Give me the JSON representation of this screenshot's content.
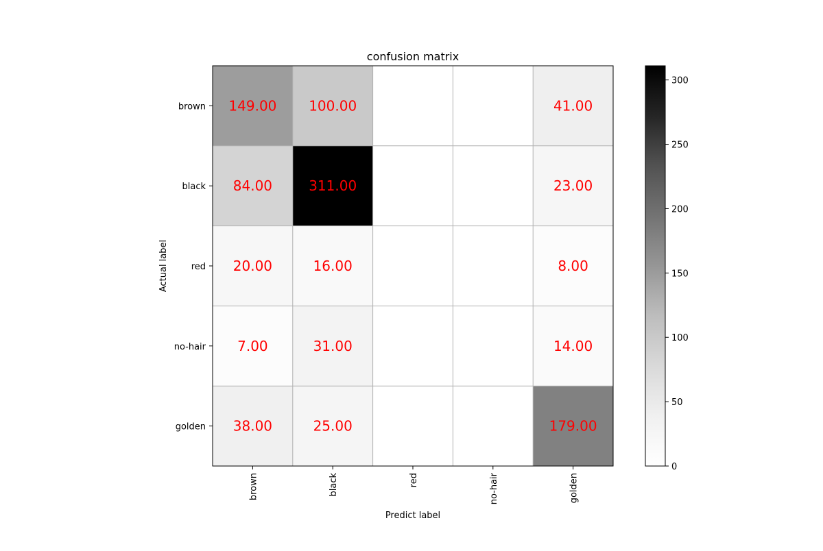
{
  "chart_data": {
    "type": "heatmap",
    "title": "confusion matrix",
    "xlabel": "Predict label",
    "ylabel": "Actual label",
    "x_categories": [
      "brown",
      "black",
      "red",
      "no-hair",
      "golden"
    ],
    "y_categories": [
      "brown",
      "black",
      "red",
      "no-hair",
      "golden"
    ],
    "values": [
      [
        149,
        100,
        0,
        0,
        41
      ],
      [
        84,
        311,
        0,
        0,
        23
      ],
      [
        20,
        16,
        0,
        0,
        8
      ],
      [
        7,
        31,
        0,
        0,
        14
      ],
      [
        38,
        25,
        0,
        0,
        179
      ]
    ],
    "value_format_decimals": 2,
    "zero_cells_labeled": false,
    "colormap": "Greys",
    "color_range": [
      0,
      311
    ],
    "colorbar_ticks": [
      0,
      50,
      100,
      150,
      200,
      250,
      300
    ],
    "grid": true,
    "annotation_color": "#ff0000",
    "grid_color": "#b0b0b0"
  }
}
